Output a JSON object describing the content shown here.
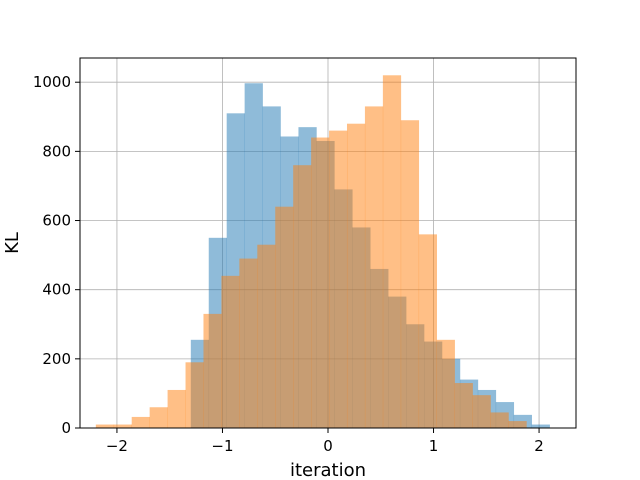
{
  "chart_data": {
    "type": "bar",
    "subtype": "overlapping-histogram",
    "title": "",
    "xlabel": "iteration",
    "ylabel": "KL",
    "xlim": [
      -2.35,
      2.35
    ],
    "ylim": [
      0,
      1070
    ],
    "xticks": [
      -2,
      -1,
      0,
      1,
      2
    ],
    "yticks": [
      0,
      200,
      400,
      600,
      800,
      1000
    ],
    "xtick_labels": [
      "−2",
      "−1",
      "0",
      "1",
      "2"
    ],
    "ytick_labels": [
      "0",
      "200",
      "400",
      "600",
      "800",
      "1000"
    ],
    "grid": true,
    "legend": "none",
    "series": [
      {
        "color": "#1f77b4",
        "alpha": 0.5,
        "bin_edges": [
          -2.15,
          -1.98,
          -1.81,
          -1.64,
          -1.47,
          -1.3,
          -1.13,
          -0.96,
          -0.79,
          -0.62,
          -0.45,
          -0.28,
          -0.11,
          0.06,
          0.23,
          0.4,
          0.57,
          0.74,
          0.91,
          1.08,
          1.25,
          1.42,
          1.59,
          1.76,
          1.93,
          2.1
        ],
        "counts": [
          0,
          0,
          0,
          0,
          0,
          255,
          550,
          910,
          997,
          930,
          843,
          870,
          830,
          690,
          580,
          460,
          380,
          300,
          250,
          200,
          140,
          110,
          75,
          38,
          10
        ]
      },
      {
        "color": "#ff7f0e",
        "alpha": 0.5,
        "bin_edges": [
          -2.2,
          -2.03,
          -1.86,
          -1.69,
          -1.52,
          -1.35,
          -1.18,
          -1.01,
          -0.84,
          -0.67,
          -0.5,
          -0.33,
          -0.16,
          0.01,
          0.18,
          0.35,
          0.52,
          0.69,
          0.86,
          1.03,
          1.2,
          1.37,
          1.54,
          1.71,
          1.88,
          2.05
        ],
        "counts": [
          10,
          10,
          32,
          60,
          110,
          190,
          330,
          440,
          490,
          530,
          640,
          760,
          840,
          860,
          880,
          930,
          1020,
          890,
          560,
          255,
          130,
          95,
          45,
          20,
          0
        ]
      }
    ]
  }
}
